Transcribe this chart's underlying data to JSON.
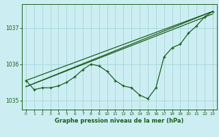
{
  "title": "Graphe pression niveau de la mer (hPa)",
  "bg_color": "#cceef2",
  "grid_color": "#aad8dc",
  "line_color": "#1a5c1a",
  "xlim": [
    -0.5,
    23.5
  ],
  "ylim": [
    1034.75,
    1037.65
  ],
  "yticks": [
    1035,
    1036,
    1037
  ],
  "xticks": [
    0,
    1,
    2,
    3,
    4,
    5,
    6,
    7,
    8,
    9,
    10,
    11,
    12,
    13,
    14,
    15,
    16,
    17,
    18,
    19,
    20,
    21,
    22,
    23
  ],
  "y_main": [
    1035.55,
    1035.3,
    1035.35,
    1035.35,
    1035.4,
    1035.5,
    1035.65,
    1035.85,
    1036.0,
    1035.95,
    1035.8,
    1035.55,
    1035.4,
    1035.35,
    1035.15,
    1035.05,
    1035.35,
    1036.2,
    1036.45,
    1036.55,
    1036.85,
    1037.05,
    1037.3,
    1037.45
  ],
  "trend_lines": [
    {
      "x0": 0,
      "y0": 1035.55,
      "x1": 23,
      "y1": 1037.45
    },
    {
      "x0": 0,
      "y0": 1035.38,
      "x1": 23,
      "y1": 1037.45
    },
    {
      "x0": 0,
      "y0": 1035.38,
      "x1": 23,
      "y1": 1037.38
    }
  ]
}
